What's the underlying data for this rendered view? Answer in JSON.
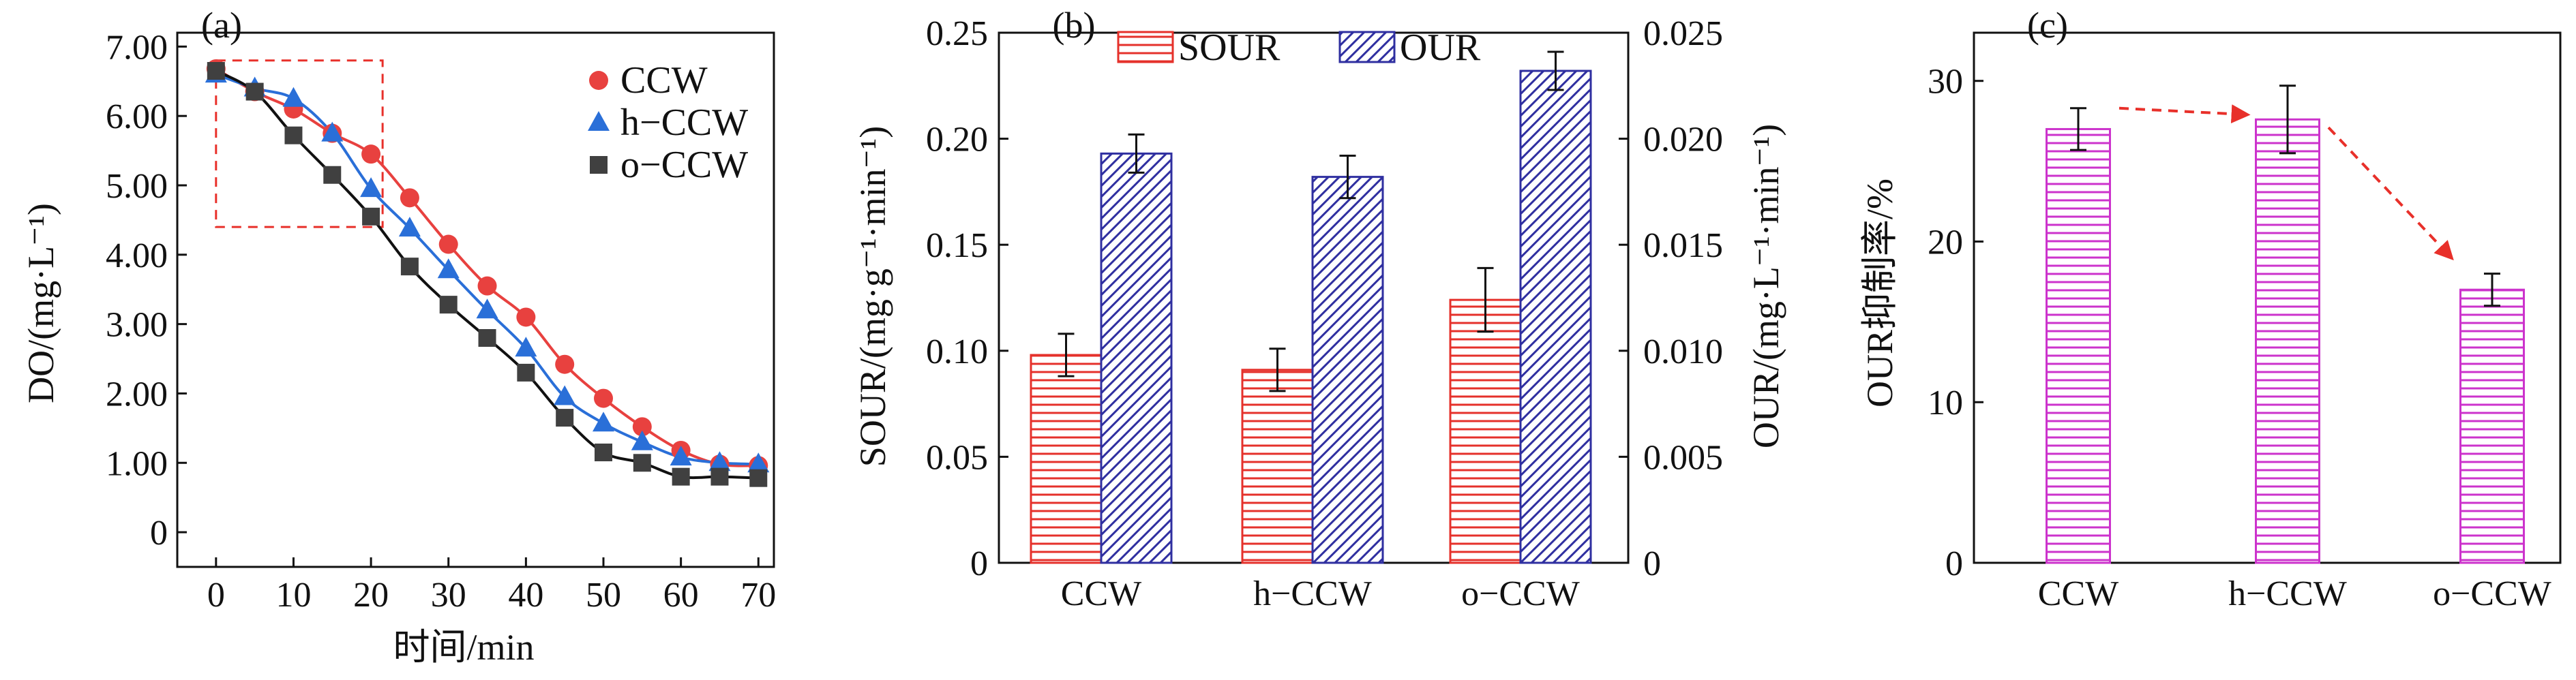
{
  "colors": {
    "ccw": "#e8413f",
    "h_ccw": "#2a6fd8",
    "o_ccw": "#404040",
    "sour": "#e5312b",
    "our": "#2f2fa0",
    "inhibition": "#cc33cc",
    "arrow": "#e8302a"
  },
  "chart_data": [
    {
      "type": "scatter",
      "panel": "(a)",
      "xlabel": "时间/min",
      "ylabel": "DO/(mg·L⁻¹)",
      "xlim": [
        -5,
        72
      ],
      "ylim": [
        -0.5,
        7.2
      ],
      "x_ticks": [
        "0",
        "10",
        "20",
        "30",
        "40",
        "50",
        "60",
        "70"
      ],
      "y_ticks": [
        "0",
        "1.00",
        "2.00",
        "3.00",
        "4.00",
        "5.00",
        "6.00",
        "7.00"
      ],
      "legend_position": "top-right",
      "annotation": "dashed rectangle highlighting early period (0–22 min)",
      "series": [
        {
          "name": "CCW",
          "marker": "circle",
          "x": [
            0,
            5,
            10,
            15,
            20,
            25,
            30,
            35,
            40,
            45,
            50,
            55,
            60,
            65,
            70
          ],
          "y": [
            6.68,
            6.35,
            6.1,
            5.75,
            5.45,
            4.82,
            4.15,
            3.55,
            3.1,
            2.42,
            1.93,
            1.52,
            1.18,
            0.98,
            0.96
          ]
        },
        {
          "name": "h−CCW",
          "marker": "triangle",
          "x": [
            0,
            5,
            10,
            15,
            20,
            25,
            30,
            35,
            40,
            45,
            50,
            55,
            60,
            65,
            70
          ],
          "y": [
            6.6,
            6.4,
            6.25,
            5.75,
            4.95,
            4.38,
            3.78,
            3.2,
            2.65,
            1.95,
            1.57,
            1.3,
            1.08,
            1.0,
            0.98
          ]
        },
        {
          "name": "o−CCW",
          "marker": "square",
          "x": [
            0,
            5,
            10,
            15,
            20,
            25,
            30,
            35,
            40,
            45,
            50,
            55,
            60,
            65,
            70
          ],
          "y": [
            6.65,
            6.35,
            5.72,
            5.15,
            4.55,
            3.83,
            3.28,
            2.8,
            2.3,
            1.65,
            1.15,
            1.0,
            0.8,
            0.8,
            0.78
          ]
        }
      ]
    },
    {
      "type": "bar",
      "panel": "(b)",
      "categories": [
        "CCW",
        "h−CCW",
        "o−CCW"
      ],
      "ylabel": "SOUR/(mg·g⁻¹·min⁻¹)",
      "y2label": "OUR/(mg·L⁻¹·min⁻¹)",
      "ylim": [
        0,
        0.25
      ],
      "y2lim": [
        0,
        0.025
      ],
      "y_ticks": [
        "0",
        "0.05",
        "0.10",
        "0.15",
        "0.20",
        "0.25"
      ],
      "y2_ticks": [
        "0",
        "0.005",
        "0.010",
        "0.015",
        "0.020",
        "0.025"
      ],
      "legend_position": "top",
      "series": [
        {
          "name": "SOUR",
          "axis": "left",
          "values": [
            0.098,
            0.091,
            0.124
          ],
          "errors": [
            0.01,
            0.01,
            0.015
          ]
        },
        {
          "name": "OUR",
          "axis": "right",
          "values": [
            0.0193,
            0.0182,
            0.0232
          ],
          "errors": [
            0.0009,
            0.001,
            0.0009
          ]
        }
      ]
    },
    {
      "type": "bar",
      "panel": "(c)",
      "categories": [
        "CCW",
        "h−CCW",
        "o−CCW"
      ],
      "ylabel": "OUR抑制率/%",
      "ylim": [
        0,
        33
      ],
      "y_ticks": [
        "0",
        "10",
        "20",
        "30"
      ],
      "series": [
        {
          "values": [
            27.0,
            27.6,
            17.0
          ],
          "errors": [
            1.3,
            2.1,
            1.0
          ]
        }
      ],
      "annotation": "dashed red arrows between consecutive bars"
    }
  ]
}
